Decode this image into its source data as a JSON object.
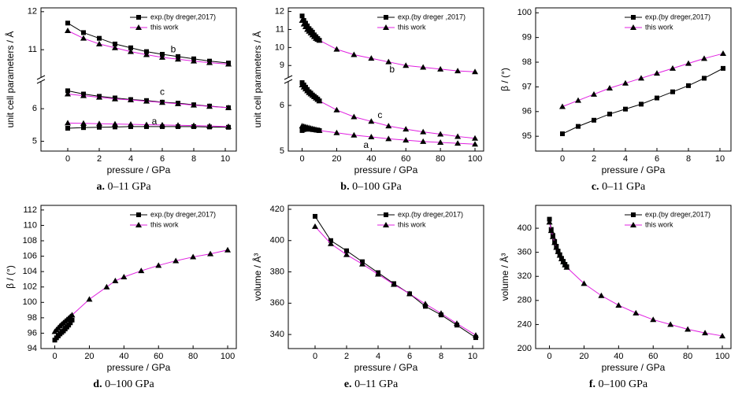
{
  "chart_data": [
    {
      "type": "line",
      "caption_label": "a.",
      "caption": "0–11 GPa",
      "xlabel": "pressure / GPa",
      "ylabel": "unit cell parameters / Å",
      "xlim": [
        -1.7,
        10.7
      ],
      "xticks": [
        0,
        2,
        4,
        6,
        8,
        10
      ],
      "y_segments": [
        {
          "ylim": [
            4.7,
            6.8
          ],
          "yticks": [
            5,
            6
          ]
        },
        {
          "ylim": [
            10.3,
            12.1
          ],
          "yticks": [
            11,
            12
          ]
        }
      ],
      "legend": "upper right",
      "series": [
        {
          "name": "exp.(by dreger,2017)",
          "color": "#000000",
          "marker": "square",
          "marker_color": "#000000",
          "x": [
            0,
            1,
            2,
            3,
            4,
            5,
            6,
            7,
            8,
            9,
            10.2
          ],
          "curves": [
            [
              5.4,
              5.42,
              5.43,
              5.44,
              5.45,
              5.45,
              5.45,
              5.45,
              5.45,
              5.44,
              5.43
            ],
            [
              6.55,
              6.45,
              6.38,
              6.33,
              6.28,
              6.25,
              6.2,
              6.17,
              6.12,
              6.08,
              6.03
            ],
            [
              11.7,
              11.45,
              11.3,
              11.15,
              11.05,
              10.95,
              10.88,
              10.82,
              10.76,
              10.7,
              10.65
            ]
          ]
        },
        {
          "name": "this work",
          "color": "#e020e0",
          "marker": "triangle",
          "marker_color": "#000000",
          "x": [
            0,
            1,
            2,
            3,
            4,
            5,
            6,
            7,
            8,
            9,
            10.2
          ],
          "curves": [
            [
              5.56,
              5.55,
              5.54,
              5.53,
              5.52,
              5.51,
              5.5,
              5.49,
              5.48,
              5.47,
              5.45
            ],
            [
              6.45,
              6.4,
              6.35,
              6.3,
              6.27,
              6.23,
              6.19,
              6.15,
              6.11,
              6.07,
              6.03
            ],
            [
              11.5,
              11.3,
              11.15,
              11.05,
              10.95,
              10.87,
              10.8,
              10.75,
              10.7,
              10.66,
              10.62
            ]
          ]
        }
      ],
      "annotations": [
        {
          "text": "a",
          "x": 5.5,
          "y": 5.6
        },
        {
          "text": "c",
          "x": 6,
          "y": 6.5
        },
        {
          "text": "b",
          "x": 6.7,
          "y": 11.0
        }
      ]
    },
    {
      "type": "line",
      "caption_label": "b.",
      "caption": "0–100 GPa",
      "xlabel": "pressure / GPa",
      "ylabel": "unit cell parameters / Å",
      "xlim": [
        -8,
        105
      ],
      "xticks": [
        0,
        20,
        40,
        60,
        80,
        100
      ],
      "y_segments": [
        {
          "ylim": [
            5,
            6.5
          ],
          "yticks": [
            5,
            6
          ]
        },
        {
          "ylim": [
            8.4,
            12.2
          ],
          "yticks": [
            9,
            10,
            11,
            12
          ]
        }
      ],
      "legend": "upper right",
      "series": [
        {
          "name": "exp.(by dreger ,2017)",
          "color": "#000000",
          "marker": "square",
          "marker_color": "#000000",
          "x": [
            0,
            1,
            2,
            3,
            4,
            5,
            6,
            7,
            8,
            9,
            10
          ],
          "curves": [
            [
              5.45,
              5.47,
              5.48,
              5.48,
              5.48,
              5.48,
              5.47,
              5.47,
              5.46,
              5.46,
              5.45
            ],
            [
              6.5,
              6.45,
              6.4,
              6.35,
              6.3,
              6.27,
              6.23,
              6.2,
              6.17,
              6.14,
              6.1
            ],
            [
              11.75,
              11.5,
              11.35,
              11.2,
              11.05,
              10.95,
              10.85,
              10.7,
              10.6,
              10.5,
              10.4
            ]
          ]
        },
        {
          "name": "this work",
          "color": "#e020e0",
          "marker": "triangle",
          "marker_color": "#000000",
          "x": [
            0,
            1,
            2,
            3,
            4,
            5,
            6,
            7,
            8,
            9,
            10,
            20,
            30,
            40,
            50,
            60,
            70,
            80,
            90,
            100
          ],
          "curves": [
            [
              5.55,
              5.54,
              5.53,
              5.52,
              5.51,
              5.5,
              5.49,
              5.48,
              5.47,
              5.46,
              5.45,
              5.4,
              5.35,
              5.31,
              5.27,
              5.24,
              5.21,
              5.19,
              5.17,
              5.15
            ],
            [
              6.45,
              6.4,
              6.36,
              6.32,
              6.28,
              6.25,
              6.22,
              6.19,
              6.16,
              6.13,
              6.1,
              5.9,
              5.75,
              5.65,
              5.55,
              5.48,
              5.42,
              5.37,
              5.32,
              5.28
            ],
            [
              11.5,
              11.3,
              11.15,
              11.0,
              10.9,
              10.8,
              10.7,
              10.6,
              10.5,
              10.45,
              10.4,
              9.9,
              9.6,
              9.4,
              9.2,
              9.0,
              8.9,
              8.8,
              8.7,
              8.65
            ]
          ]
        }
      ],
      "annotations": [
        {
          "text": "a",
          "x": 37,
          "y": 5.12
        },
        {
          "text": "c",
          "x": 45,
          "y": 5.78
        },
        {
          "text": "b",
          "x": 52,
          "y": 8.75
        }
      ]
    },
    {
      "type": "line",
      "caption_label": "c.",
      "caption": "0–11 GPa",
      "xlabel": "pressure / GPa",
      "ylabel": "β / (°)",
      "xlim": [
        -1.7,
        10.7
      ],
      "xticks": [
        0,
        2,
        4,
        6,
        8,
        10
      ],
      "ylim": [
        94.4,
        100.2
      ],
      "yticks": [
        95,
        96,
        97,
        98,
        99,
        100
      ],
      "legend": "upper right",
      "series": [
        {
          "name": "exp.(by dreger,2017)",
          "color": "#000000",
          "marker": "square",
          "marker_color": "#000000",
          "x": [
            0,
            1,
            2,
            3,
            4,
            5,
            6,
            7,
            8,
            9,
            10.2
          ],
          "curves": [
            [
              95.1,
              95.4,
              95.65,
              95.9,
              96.1,
              96.3,
              96.55,
              96.8,
              97.05,
              97.35,
              97.75
            ]
          ]
        },
        {
          "name": "this work",
          "color": "#e020e0",
          "marker": "triangle",
          "marker_color": "#000000",
          "x": [
            0,
            1,
            2,
            3,
            4,
            5,
            6,
            7,
            8,
            9,
            10.2
          ],
          "curves": [
            [
              96.2,
              96.45,
              96.7,
              96.95,
              97.15,
              97.35,
              97.55,
              97.75,
              97.95,
              98.15,
              98.35
            ]
          ]
        }
      ]
    },
    {
      "type": "line",
      "caption_label": "d.",
      "caption": "0–100 GPa",
      "xlabel": "pressure / GPa",
      "ylabel": "β / (°)",
      "xlim": [
        -8,
        105
      ],
      "xticks": [
        0,
        20,
        40,
        60,
        80,
        100
      ],
      "ylim": [
        94,
        112.6
      ],
      "yticks": [
        94,
        96,
        98,
        100,
        102,
        104,
        106,
        108,
        110,
        112
      ],
      "legend": "upper right",
      "series": [
        {
          "name": "exp.(by dreger,2017)",
          "color": "#000000",
          "marker": "square",
          "marker_color": "#000000",
          "x": [
            0,
            1,
            2,
            3,
            4,
            5,
            6,
            7,
            8,
            9,
            10
          ],
          "curves": [
            [
              95.1,
              95.4,
              95.65,
              95.9,
              96.1,
              96.3,
              96.55,
              96.8,
              97.05,
              97.35,
              97.7
            ]
          ]
        },
        {
          "name": "this work",
          "color": "#e020e0",
          "marker": "triangle",
          "marker_color": "#000000",
          "x": [
            0,
            1,
            2,
            3,
            4,
            5,
            6,
            7,
            8,
            9,
            10,
            20,
            30,
            35,
            40,
            50,
            60,
            70,
            80,
            90,
            100
          ],
          "curves": [
            [
              96.2,
              96.45,
              96.7,
              96.95,
              97.15,
              97.35,
              97.55,
              97.75,
              97.95,
              98.15,
              98.35,
              100.4,
              102.0,
              102.8,
              103.3,
              104.1,
              104.8,
              105.4,
              105.9,
              106.3,
              106.8
            ]
          ]
        }
      ]
    },
    {
      "type": "line",
      "caption_label": "e.",
      "caption": "0–11 GPa",
      "xlabel": "pressure / GPa",
      "ylabel": "volume / Å³",
      "xlim": [
        -1.7,
        10.7
      ],
      "xticks": [
        0,
        2,
        4,
        6,
        8,
        10
      ],
      "ylim": [
        331,
        422.5
      ],
      "yticks": [
        340,
        360,
        380,
        400,
        420
      ],
      "legend": "upper right",
      "series": [
        {
          "name": "exp.(by dreger,2017)",
          "color": "#000000",
          "marker": "square",
          "marker_color": "#000000",
          "x": [
            0,
            1,
            2,
            3,
            4,
            5,
            6,
            7,
            8,
            9,
            10.2
          ],
          "curves": [
            [
              415.5,
              400,
              393.5,
              386.5,
              379.5,
              372.5,
              366,
              358,
              352.5,
              346,
              338
            ]
          ]
        },
        {
          "name": "this work",
          "color": "#e020e0",
          "marker": "triangle",
          "marker_color": "#000000",
          "x": [
            0,
            1,
            2,
            3,
            4,
            5,
            6,
            7,
            8,
            9,
            10.2
          ],
          "curves": [
            [
              409,
              398,
              391,
              385,
              378.5,
              372,
              366,
              359.5,
              353.5,
              347,
              339.5
            ]
          ]
        }
      ]
    },
    {
      "type": "line",
      "caption_label": "f.",
      "caption": "0–100 GPa",
      "xlabel": "pressure / GPa",
      "ylabel": "volume / Å³",
      "xlim": [
        -8,
        105
      ],
      "xticks": [
        0,
        20,
        40,
        60,
        80,
        100
      ],
      "ylim": [
        200,
        438
      ],
      "yticks": [
        200,
        240,
        280,
        320,
        360,
        400
      ],
      "legend": "upper right",
      "series": [
        {
          "name": "exp.(by dreger,2017)",
          "color": "#000000",
          "marker": "square",
          "marker_color": "#000000",
          "x": [
            0,
            1,
            2,
            3,
            4,
            5,
            6,
            7,
            8,
            9,
            10
          ],
          "curves": [
            [
              415,
              398,
              388,
              378,
              370,
              362,
              356,
              350,
              345,
              340,
              336
            ]
          ]
        },
        {
          "name": "this work",
          "color": "#e020e0",
          "marker": "triangle",
          "marker_color": "#000000",
          "x": [
            0,
            1,
            2,
            3,
            4,
            5,
            6,
            7,
            8,
            9,
            10,
            20,
            30,
            40,
            50,
            60,
            70,
            80,
            90,
            100
          ],
          "curves": [
            [
              410,
              396,
              386,
              376,
              368,
              361,
              355,
              349,
              344,
              339,
              335,
              308,
              288,
              272,
              259,
              248,
              240,
              232,
              226,
              221
            ]
          ]
        }
      ]
    }
  ]
}
